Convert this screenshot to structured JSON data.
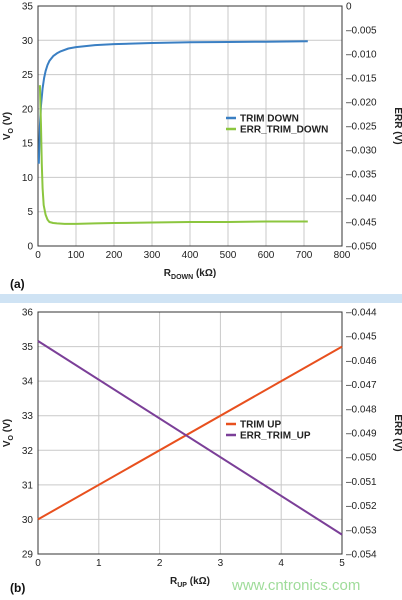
{
  "colors": {
    "trim_down": "#3a7fc3",
    "err_trim_down": "#8cc63f",
    "trim_up": "#e8501e",
    "err_trim_up": "#7b3f98",
    "divider": "#cfe3f4",
    "grid": "#c9c9c9"
  },
  "panels": {
    "a": {
      "label": "(a)"
    },
    "b": {
      "label": "(b)"
    }
  },
  "watermark": "www.cntronics.com",
  "chart_data": [
    {
      "type": "line",
      "panel": "(a)",
      "xlabel_main": "R",
      "xlabel_sub": "DOWN",
      "xlabel_unit": " (kΩ)",
      "ylabel_left_main": "V",
      "ylabel_left_sub": "O",
      "ylabel_left_unit": " (V)",
      "ylabel_right": "ERR (V)",
      "xlim": [
        0,
        800
      ],
      "ylim_left": [
        0,
        35
      ],
      "ylim_right": [
        -0.05,
        0
      ],
      "xticks": [
        0,
        100,
        200,
        300,
        400,
        500,
        600,
        700,
        800
      ],
      "yticks_left": [
        0,
        5,
        10,
        15,
        20,
        25,
        30,
        35
      ],
      "yticks_right": [
        0,
        -0.005,
        -0.01,
        -0.015,
        -0.02,
        -0.025,
        -0.03,
        -0.035,
        -0.04,
        -0.045,
        -0.05
      ],
      "ytick_labels_right": [
        "0",
        "–0.005",
        "–0.010",
        "–0.015",
        "–0.020",
        "–0.025",
        "–0.030",
        "–0.035",
        "–0.040",
        "–0.045",
        "–0.050"
      ],
      "grid": true,
      "legend_position": "right-middle",
      "series": [
        {
          "name": "TRIM DOWN",
          "axis": "left",
          "color_key": "trim_down",
          "x": [
            2,
            5,
            8,
            12,
            16,
            20,
            25,
            30,
            40,
            50,
            60,
            80,
            100,
            150,
            200,
            300,
            400,
            500,
            600,
            710
          ],
          "y": [
            12.0,
            17.5,
            20.5,
            23.0,
            24.5,
            25.5,
            26.4,
            27.0,
            27.7,
            28.1,
            28.4,
            28.8,
            29.0,
            29.3,
            29.45,
            29.6,
            29.7,
            29.75,
            29.8,
            29.85
          ]
        },
        {
          "name": "ERR_TRIM_DOWN",
          "axis": "right",
          "color_key": "err_trim_down",
          "x": [
            5,
            8,
            10,
            12,
            15,
            20,
            25,
            30,
            40,
            50,
            70,
            100,
            150,
            200,
            300,
            400,
            500,
            600,
            710
          ],
          "y": [
            -0.0165,
            -0.025,
            -0.033,
            -0.038,
            -0.0415,
            -0.0435,
            -0.0445,
            -0.045,
            -0.0452,
            -0.0453,
            -0.0454,
            -0.0454,
            -0.0453,
            -0.0452,
            -0.0451,
            -0.045,
            -0.045,
            -0.0449,
            -0.0449
          ]
        }
      ]
    },
    {
      "type": "line",
      "panel": "(b)",
      "xlabel_main": "R",
      "xlabel_sub": "UP",
      "xlabel_unit": " (kΩ)",
      "ylabel_left_main": "V",
      "ylabel_left_sub": "O",
      "ylabel_left_unit": " (V)",
      "ylabel_right": "ERR (V)",
      "xlim": [
        0,
        5
      ],
      "ylim_left": [
        29,
        36
      ],
      "ylim_right": [
        -0.054,
        -0.044
      ],
      "xticks": [
        0,
        1,
        2,
        3,
        4,
        5
      ],
      "yticks_left": [
        29,
        30,
        31,
        32,
        33,
        34,
        35,
        36
      ],
      "yticks_right": [
        -0.044,
        -0.045,
        -0.046,
        -0.047,
        -0.048,
        -0.049,
        -0.05,
        -0.051,
        -0.052,
        -0.053,
        -0.054
      ],
      "ytick_labels_right": [
        "–0.044",
        "–0.045",
        "–0.046",
        "–0.047",
        "–0.048",
        "–0.049",
        "–0.050",
        "–0.051",
        "–0.052",
        "–0.053",
        "–0.054"
      ],
      "grid": true,
      "legend_position": "right-middle",
      "series": [
        {
          "name": "TRIM UP",
          "axis": "left",
          "color_key": "trim_up",
          "x": [
            0,
            5
          ],
          "y": [
            30.0,
            35.0
          ]
        },
        {
          "name": "ERR_TRIM_UP",
          "axis": "right",
          "color_key": "err_trim_up",
          "x": [
            0,
            5
          ],
          "y": [
            -0.0452,
            -0.0532
          ]
        }
      ]
    }
  ]
}
